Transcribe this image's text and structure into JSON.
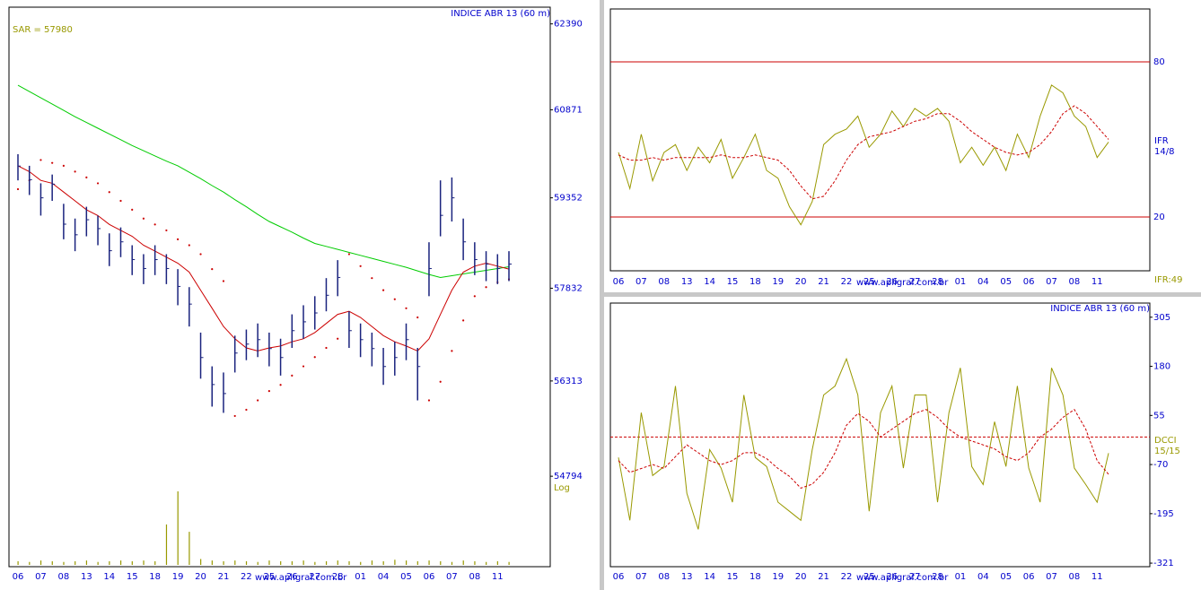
{
  "chart_data": [
    {
      "type": "ohlc",
      "title": "INDICE ABR 13 (60 m)",
      "annotation": "SAR = 57980",
      "scale_label": "Log",
      "watermark": "www.apligraf.com.br",
      "log_scale": true,
      "categories": [
        "06",
        null,
        "07",
        null,
        "08",
        null,
        "13",
        null,
        "14",
        null,
        "15",
        null,
        "18",
        null,
        "19",
        null,
        "20",
        null,
        "21",
        null,
        "22",
        null,
        "25",
        null,
        "26",
        null,
        "27",
        null,
        "28",
        null,
        "01",
        null,
        "04",
        null,
        "05",
        null,
        "06",
        null,
        "07",
        null,
        "08",
        null,
        "11",
        null
      ],
      "ylim": [
        53390,
        62690
      ],
      "yticks": [
        54794,
        56313,
        57832,
        59352,
        60871,
        62390
      ],
      "ohlc": {
        "color": "#1a237e",
        "high": [
          60100,
          59900,
          59600,
          59750,
          59250,
          59000,
          59200,
          59050,
          58750,
          58850,
          58550,
          58400,
          58550,
          58400,
          58150,
          57850,
          57100,
          56550,
          56450,
          57050,
          57150,
          57250,
          57100,
          57000,
          57400,
          57550,
          57700,
          58000,
          58300,
          57450,
          57250,
          57100,
          56850,
          56950,
          57250,
          56850,
          58600,
          59650,
          59700,
          59000,
          58600,
          58450,
          58400,
          58450
        ],
        "low": [
          59650,
          59400,
          59050,
          59300,
          58650,
          58450,
          58700,
          58550,
          58200,
          58350,
          58050,
          57900,
          58050,
          57900,
          57550,
          57200,
          56350,
          55900,
          55800,
          56450,
          56650,
          56700,
          56550,
          56400,
          56850,
          57000,
          57150,
          57450,
          57700,
          56850,
          56700,
          56550,
          56250,
          56400,
          56650,
          56000,
          57700,
          58700,
          58950,
          58300,
          58050,
          57950,
          57900,
          57950
        ],
        "close": [
          59895,
          59662,
          59352,
          59585,
          58905,
          58726,
          58980,
          58830,
          58458,
          58607,
          58309,
          58160,
          58309,
          58160,
          57862,
          57569,
          56693,
          56255,
          56110,
          56766,
          56912,
          56985,
          56839,
          56693,
          57132,
          57277,
          57423,
          57715,
          58011,
          57132,
          56985,
          56839,
          56547,
          56693,
          56985,
          56547,
          58160,
          59054,
          59352,
          58607,
          58309,
          58235,
          58160,
          58235
        ]
      },
      "overlays": [
        {
          "style": "line",
          "color": "#00cc00",
          "values": [
            61300,
            61190,
            61080,
            60970,
            60860,
            60750,
            60650,
            60550,
            60450,
            60350,
            60250,
            60160,
            60070,
            59980,
            59900,
            59790,
            59680,
            59560,
            59450,
            59320,
            59200,
            59070,
            58950,
            58860,
            58770,
            58670,
            58580,
            58530,
            58480,
            58430,
            58380,
            58330,
            58280,
            58230,
            58180,
            58120,
            58060,
            58010,
            58040,
            58070,
            58100,
            58130,
            58160,
            58190
          ]
        },
        {
          "style": "line",
          "color": "#cc0000",
          "values": [
            59900,
            59800,
            59650,
            59600,
            59450,
            59300,
            59150,
            59050,
            58900,
            58800,
            58700,
            58550,
            58450,
            58350,
            58250,
            58100,
            57800,
            57500,
            57200,
            57000,
            56850,
            56800,
            56850,
            56880,
            56950,
            57000,
            57100,
            57250,
            57400,
            57450,
            57350,
            57200,
            57050,
            56950,
            56880,
            56800,
            57000,
            57400,
            57800,
            58100,
            58200,
            58250,
            58200,
            58150
          ]
        },
        {
          "style": "dots",
          "color": "#cc0000",
          "values": [
            59500,
            59650,
            60000,
            59950,
            59900,
            59800,
            59700,
            59600,
            59450,
            59300,
            59150,
            59000,
            58900,
            58800,
            58650,
            58550,
            58400,
            58150,
            57950,
            55750,
            55850,
            56000,
            56150,
            56250,
            56400,
            56550,
            56700,
            56850,
            57000,
            58400,
            58200,
            58000,
            57800,
            57650,
            57500,
            57350,
            56000,
            56300,
            56800,
            57300,
            57700,
            57850,
            57930,
            57980
          ]
        }
      ],
      "volume": {
        "color": "#999900",
        "values": [
          5,
          4,
          6,
          5,
          4,
          5,
          6,
          4,
          5,
          6,
          5,
          6,
          5,
          55,
          100,
          45,
          8,
          6,
          5,
          6,
          5,
          4,
          6,
          5,
          5,
          6,
          4,
          5,
          6,
          5,
          4,
          6,
          5,
          7,
          6,
          5,
          6,
          5,
          4,
          6,
          5,
          4,
          5,
          4
        ]
      }
    },
    {
      "type": "line",
      "indicator_label": "IFR",
      "indicator_params": "14/8",
      "value_label": "IFR:49",
      "watermark": "www.apligraf.com.br",
      "categories": [
        "06",
        null,
        "07",
        null,
        "08",
        null,
        "13",
        null,
        "14",
        null,
        "15",
        null,
        "18",
        null,
        "19",
        null,
        "20",
        null,
        "21",
        null,
        "22",
        null,
        "25",
        null,
        "26",
        null,
        "27",
        null,
        "28",
        null,
        "01",
        null,
        "04",
        null,
        "05",
        null,
        "06",
        null,
        "07",
        null,
        "08",
        null,
        "11",
        null
      ],
      "ylim": [
        0,
        100
      ],
      "yticks": [
        20,
        80
      ],
      "grid": true,
      "grid_color": "#cc0000",
      "series": [
        {
          "color": "#999900",
          "style": "solid",
          "values": [
            45,
            31,
            52,
            34,
            45,
            48,
            38,
            47,
            41,
            50,
            35,
            43,
            52,
            38,
            35,
            24,
            17,
            26,
            48,
            52,
            54,
            59,
            47,
            52,
            61,
            55,
            62,
            59,
            62,
            57,
            41,
            47,
            40,
            47,
            38,
            52,
            43,
            59,
            71,
            68,
            59,
            55,
            43,
            49
          ]
        },
        {
          "color": "#cc0000",
          "style": "dashed",
          "values": [
            44,
            42,
            42,
            43,
            42,
            43,
            43,
            43,
            43,
            44,
            43,
            43,
            44,
            43,
            42,
            38,
            32,
            27,
            28,
            34,
            42,
            48,
            51,
            52,
            53,
            55,
            57,
            58,
            60,
            60,
            57,
            53,
            50,
            47,
            45,
            44,
            45,
            48,
            53,
            60,
            63,
            60,
            55,
            50
          ]
        }
      ]
    },
    {
      "type": "line",
      "title": "INDICE ABR 13 (60 m)",
      "indicator_label": "DCCI",
      "indicator_params": "15/15",
      "watermark": "www.apligraf.com.br",
      "categories": [
        "06",
        null,
        "07",
        null,
        "08",
        null,
        "13",
        null,
        "14",
        null,
        "15",
        null,
        "18",
        null,
        "19",
        null,
        "20",
        null,
        "21",
        null,
        "22",
        null,
        "25",
        null,
        "26",
        null,
        "27",
        null,
        "28",
        null,
        "01",
        null,
        "04",
        null,
        "05",
        null,
        "06",
        null,
        "07",
        null,
        "08",
        null,
        "11",
        null
      ],
      "ylim": [
        -330,
        341
      ],
      "yticks": [
        -321,
        -195,
        -70,
        55,
        180,
        305
      ],
      "hlines": [
        0
      ],
      "hline_color": "#cc0000",
      "series": [
        {
          "color": "#999900",
          "style": "solid",
          "values": [
            -52,
            -212,
            62,
            -98,
            -75,
            130,
            -143,
            -235,
            -32,
            -79,
            -166,
            107,
            -52,
            -75,
            -166,
            -189,
            -212,
            -32,
            107,
            130,
            199,
            107,
            -189,
            62,
            130,
            -79,
            107,
            107,
            -166,
            62,
            176,
            -75,
            -121,
            39,
            -75,
            130,
            -79,
            -166,
            176,
            107,
            -79,
            -121,
            -166,
            -41
          ]
        },
        {
          "color": "#cc0000",
          "style": "dashed",
          "values": [
            -60,
            -90,
            -80,
            -70,
            -80,
            -50,
            -20,
            -40,
            -60,
            -70,
            -60,
            -40,
            -40,
            -55,
            -80,
            -100,
            -130,
            -120,
            -90,
            -40,
            30,
            60,
            40,
            0,
            20,
            40,
            60,
            70,
            50,
            20,
            0,
            -10,
            -20,
            -30,
            -50,
            -60,
            -40,
            0,
            20,
            50,
            70,
            20,
            -60,
            -95
          ]
        }
      ]
    }
  ]
}
